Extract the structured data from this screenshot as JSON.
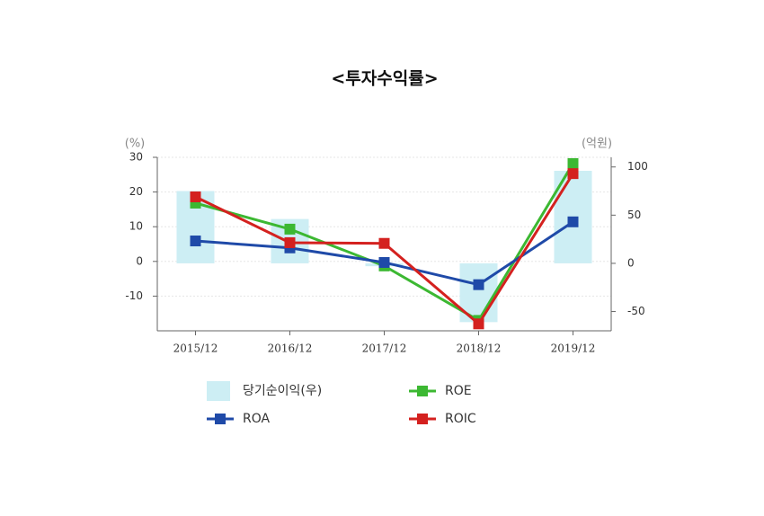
{
  "chart_data": {
    "type": "bar_line_dual",
    "title": "<투자수익률>",
    "ylabel": "(%)",
    "y2label": "(억원)",
    "categories": [
      "2015/12",
      "2016/12",
      "2017/12",
      "2018/12",
      "2019/12"
    ],
    "ylim": [
      -20,
      30
    ],
    "yticks": [
      -10,
      0,
      10,
      20,
      30
    ],
    "y2lim": [
      -70,
      110
    ],
    "y2ticks": [
      -50,
      0,
      50,
      100
    ],
    "grid": true,
    "series": [
      {
        "name": "당기순이익(우)",
        "type": "bar",
        "axis": "y2",
        "color": "#cdeef4",
        "values": [
          75,
          46,
          -3,
          -61,
          96
        ]
      },
      {
        "name": "ROE",
        "type": "line",
        "color": "#3cb832",
        "values": [
          16.8,
          9.3,
          -1.3,
          -17,
          28.2
        ]
      },
      {
        "name": "ROA",
        "type": "line",
        "color": "#1f4aa8",
        "values": [
          5.9,
          3.9,
          -0.3,
          -6.7,
          11.4
        ]
      },
      {
        "name": "ROIC",
        "type": "line",
        "color": "#d4211f",
        "values": [
          18.6,
          5.4,
          5.2,
          -18,
          25.3
        ]
      }
    ]
  }
}
